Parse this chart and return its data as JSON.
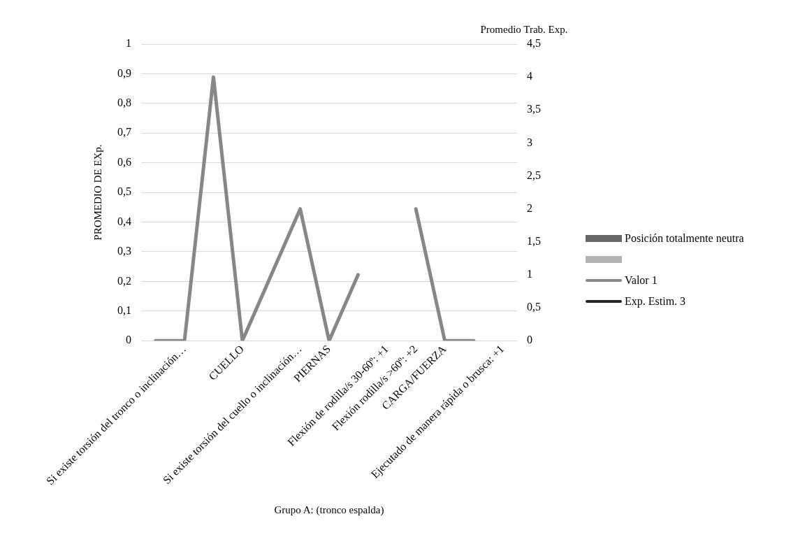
{
  "chart_data": {
    "type": "line",
    "xlabel": "Grupo A: (tronco espalda)",
    "ylabel": "PROMEDIO DE EXp.",
    "y2label": "Promedio Trab. Exp.",
    "categories": [
      null,
      "Si existe torsión del tronco o inclinación…",
      null,
      "CUELLO",
      null,
      "Si existe torsión del cuello o inclinación…",
      "PIERNAS",
      null,
      "Flexión de rodilla/s 30-60º: +1",
      "Flexión rodilla/s >60º: +2",
      "CARGA/FUERZA",
      null,
      "Ejecutado de manera rápida o brusca: +1"
    ],
    "series": [
      {
        "name": "Posición totalmente neutra",
        "type": "bar",
        "color": "#666666",
        "values": [
          null,
          null,
          null,
          null,
          null,
          null,
          null,
          null,
          null,
          null,
          null,
          null,
          null
        ]
      },
      {
        "type": "bar",
        "color": "#b2b2b2",
        "values": [
          null,
          null,
          null,
          null,
          null,
          null,
          null,
          null,
          null,
          null,
          null,
          null,
          null
        ]
      },
      {
        "name": "Valor 1",
        "axis": "y2",
        "color": "#878787",
        "values": [
          0,
          0,
          4,
          0,
          1,
          2,
          0,
          1,
          null,
          2,
          0,
          0,
          null
        ]
      },
      {
        "name": "Exp. Estim. 3",
        "color": "#262626",
        "values": [
          null,
          null,
          null,
          null,
          null,
          null,
          null,
          null,
          null,
          null,
          null,
          null,
          null
        ]
      }
    ],
    "ylim": [
      0,
      1
    ],
    "yticks": [
      0,
      {
        "value": 0.1,
        "label": "0,1"
      },
      {
        "value": 0.2,
        "label": "0,2"
      },
      {
        "value": 0.3,
        "label": "0,3"
      },
      {
        "value": 0.4,
        "label": "0,4"
      },
      {
        "value": 0.5,
        "label": "0,5"
      },
      {
        "value": 0.6,
        "label": "0,6"
      },
      {
        "value": 0.7,
        "label": "0,7"
      },
      {
        "value": 0.8,
        "label": "0,8"
      },
      {
        "value": 0.9,
        "label": "0,9"
      },
      1
    ],
    "y2lim": [
      0,
      4.5
    ],
    "y2ticks": [
      0,
      {
        "value": 0.5,
        "label": "0,5"
      },
      1,
      {
        "value": 1.5,
        "label": "1,5"
      },
      2,
      {
        "value": 2.5,
        "label": "2,5"
      },
      3,
      {
        "value": 3.5,
        "label": "3,5"
      },
      4,
      {
        "value": 4.5,
        "label": "4,5"
      }
    ],
    "grid": "y",
    "legend": "right",
    "marker": "none",
    "line_style": "solid"
  }
}
